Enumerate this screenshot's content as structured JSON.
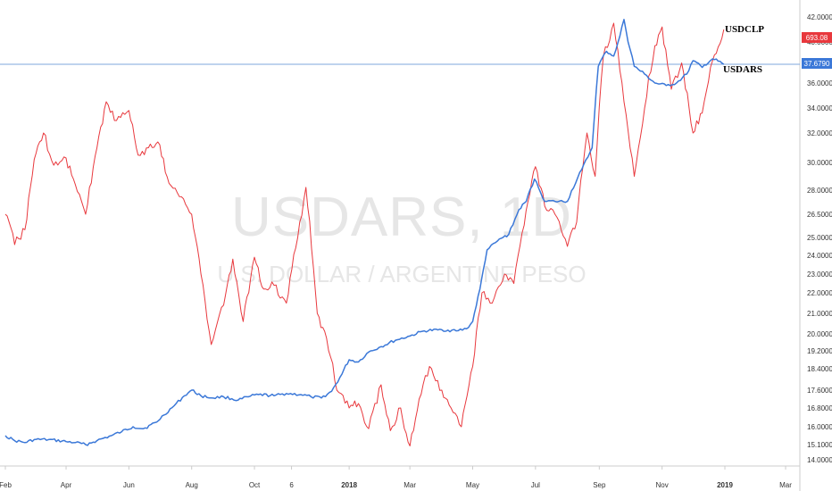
{
  "watermark": {
    "symbol": "USDARS, 1D",
    "description": "U.S. DOLLAR / ARGENTINE PESO"
  },
  "chart_data": {
    "type": "line",
    "y_axis_position": "right",
    "y_ticks": [
      "14.0000",
      "15.1000",
      "16.0000",
      "16.8000",
      "17.6000",
      "18.4000",
      "19.2000",
      "20.0000",
      "21.0000",
      "22.0000",
      "23.0000",
      "24.0000",
      "25.0000",
      "26.5000",
      "28.0000",
      "30.0000",
      "32.0000",
      "34.0000",
      "36.0000",
      "38.0000",
      "40.0000",
      "42.0000"
    ],
    "ylim": [
      14.0,
      42.0
    ],
    "x_ticks": [
      {
        "label": "Feb",
        "date": "2017-02-01",
        "bold": false
      },
      {
        "label": "Apr",
        "date": "2017-04-01",
        "bold": false
      },
      {
        "label": "Jun",
        "date": "2017-06-01",
        "bold": false
      },
      {
        "label": "Aug",
        "date": "2017-08-01",
        "bold": false
      },
      {
        "label": "Oct",
        "date": "2017-10-01",
        "bold": false
      },
      {
        "label": "6",
        "date": "2017-11-06",
        "bold": false
      },
      {
        "label": "2018",
        "date": "2018-01-01",
        "bold": true
      },
      {
        "label": "Mar",
        "date": "2018-03-01",
        "bold": false
      },
      {
        "label": "May",
        "date": "2018-05-01",
        "bold": false
      },
      {
        "label": "Jul",
        "date": "2018-07-01",
        "bold": false
      },
      {
        "label": "Sep",
        "date": "2018-09-01",
        "bold": false
      },
      {
        "label": "Nov",
        "date": "2018-11-01",
        "bold": false
      },
      {
        "label": "2019",
        "date": "2019-01-01",
        "bold": true
      },
      {
        "label": "Mar",
        "date": "2019-03-01",
        "bold": false
      }
    ],
    "series": [
      {
        "name": "USDARS",
        "color": "#3b78d8",
        "last_value": "37.6790",
        "points": [
          [
            "2017-02-01",
            15.55
          ],
          [
            "2017-02-10",
            15.3
          ],
          [
            "2017-02-20",
            15.2
          ],
          [
            "2017-03-01",
            15.35
          ],
          [
            "2017-03-15",
            15.35
          ],
          [
            "2017-04-01",
            15.25
          ],
          [
            "2017-04-10",
            15.2
          ],
          [
            "2017-04-20",
            15.1
          ],
          [
            "2017-05-01",
            15.3
          ],
          [
            "2017-05-15",
            15.55
          ],
          [
            "2017-05-25",
            15.75
          ],
          [
            "2017-06-05",
            16.0
          ],
          [
            "2017-06-15",
            15.9
          ],
          [
            "2017-06-28",
            16.2
          ],
          [
            "2017-07-05",
            16.5
          ],
          [
            "2017-07-15",
            16.9
          ],
          [
            "2017-07-25",
            17.35
          ],
          [
            "2017-08-01",
            17.6
          ],
          [
            "2017-08-10",
            17.35
          ],
          [
            "2017-08-20",
            17.25
          ],
          [
            "2017-09-01",
            17.3
          ],
          [
            "2017-09-15",
            17.15
          ],
          [
            "2017-09-25",
            17.3
          ],
          [
            "2017-10-05",
            17.4
          ],
          [
            "2017-10-20",
            17.35
          ],
          [
            "2017-11-01",
            17.45
          ],
          [
            "2017-11-15",
            17.4
          ],
          [
            "2017-11-25",
            17.3
          ],
          [
            "2017-12-05",
            17.25
          ],
          [
            "2017-12-15",
            17.55
          ],
          [
            "2017-12-25",
            18.2
          ],
          [
            "2018-01-01",
            18.8
          ],
          [
            "2018-01-10",
            18.7
          ],
          [
            "2018-01-20",
            19.15
          ],
          [
            "2018-02-01",
            19.4
          ],
          [
            "2018-02-15",
            19.7
          ],
          [
            "2018-03-01",
            19.9
          ],
          [
            "2018-03-15",
            20.15
          ],
          [
            "2018-04-01",
            20.2
          ],
          [
            "2018-04-15",
            20.15
          ],
          [
            "2018-04-25",
            20.25
          ],
          [
            "2018-05-01",
            20.6
          ],
          [
            "2018-05-08",
            22.2
          ],
          [
            "2018-05-15",
            24.3
          ],
          [
            "2018-05-25",
            24.8
          ],
          [
            "2018-06-05",
            25.2
          ],
          [
            "2018-06-15",
            26.8
          ],
          [
            "2018-06-22",
            27.3
          ],
          [
            "2018-06-30",
            28.8
          ],
          [
            "2018-07-10",
            27.3
          ],
          [
            "2018-07-20",
            27.3
          ],
          [
            "2018-08-01",
            27.3
          ],
          [
            "2018-08-15",
            29.5
          ],
          [
            "2018-08-25",
            31.0
          ],
          [
            "2018-08-31",
            37.5
          ],
          [
            "2018-09-08",
            39.0
          ],
          [
            "2018-09-15",
            38.5
          ],
          [
            "2018-09-25",
            41.8
          ],
          [
            "2018-10-05",
            37.5
          ],
          [
            "2018-10-15",
            36.8
          ],
          [
            "2018-10-25",
            36.0
          ],
          [
            "2018-11-05",
            35.8
          ],
          [
            "2018-11-15",
            36.0
          ],
          [
            "2018-11-25",
            36.8
          ],
          [
            "2018-12-01",
            38.0
          ],
          [
            "2018-12-10",
            37.4
          ],
          [
            "2018-12-20",
            38.2
          ],
          [
            "2018-12-31",
            37.68
          ]
        ]
      },
      {
        "name": "USDCLP",
        "color": "#e8383d",
        "last_value": "693.08",
        "points": [
          [
            "2017-02-01",
            26.5
          ],
          [
            "2017-02-10",
            24.6
          ],
          [
            "2017-02-20",
            25.5
          ],
          [
            "2017-03-01",
            30.2
          ],
          [
            "2017-03-10",
            32.0
          ],
          [
            "2017-03-20",
            29.8
          ],
          [
            "2017-04-01",
            30.3
          ],
          [
            "2017-04-10",
            28.4
          ],
          [
            "2017-04-20",
            26.5
          ],
          [
            "2017-05-01",
            31.0
          ],
          [
            "2017-05-10",
            34.5
          ],
          [
            "2017-05-20",
            33.0
          ],
          [
            "2017-06-01",
            33.8
          ],
          [
            "2017-06-10",
            30.5
          ],
          [
            "2017-06-20",
            31.0
          ],
          [
            "2017-07-01",
            31.2
          ],
          [
            "2017-07-10",
            28.5
          ],
          [
            "2017-07-20",
            27.6
          ],
          [
            "2017-08-01",
            26.5
          ],
          [
            "2017-08-10",
            23.0
          ],
          [
            "2017-08-20",
            19.5
          ],
          [
            "2017-09-01",
            21.4
          ],
          [
            "2017-09-10",
            23.8
          ],
          [
            "2017-09-20",
            20.6
          ],
          [
            "2017-10-01",
            23.9
          ],
          [
            "2017-10-10",
            22.2
          ],
          [
            "2017-10-20",
            22.4
          ],
          [
            "2017-11-01",
            21.5
          ],
          [
            "2017-11-10",
            24.4
          ],
          [
            "2017-11-20",
            28.2
          ],
          [
            "2017-12-01",
            21.0
          ],
          [
            "2017-12-10",
            19.8
          ],
          [
            "2017-12-20",
            17.6
          ],
          [
            "2018-01-01",
            16.8
          ],
          [
            "2018-01-10",
            17.0
          ],
          [
            "2018-01-20",
            15.9
          ],
          [
            "2018-02-01",
            17.8
          ],
          [
            "2018-02-10",
            15.8
          ],
          [
            "2018-02-20",
            16.8
          ],
          [
            "2018-03-01",
            15.0
          ],
          [
            "2018-03-10",
            17.2
          ],
          [
            "2018-03-20",
            18.5
          ],
          [
            "2018-04-01",
            17.6
          ],
          [
            "2018-04-10",
            16.8
          ],
          [
            "2018-04-20",
            16.0
          ],
          [
            "2018-05-01",
            18.5
          ],
          [
            "2018-05-10",
            22.0
          ],
          [
            "2018-05-20",
            21.5
          ],
          [
            "2018-06-01",
            23.0
          ],
          [
            "2018-06-10",
            22.5
          ],
          [
            "2018-06-20",
            25.8
          ],
          [
            "2018-07-01",
            29.7
          ],
          [
            "2018-07-10",
            27.0
          ],
          [
            "2018-07-20",
            26.5
          ],
          [
            "2018-08-01",
            24.5
          ],
          [
            "2018-08-10",
            26.0
          ],
          [
            "2018-08-20",
            32.0
          ],
          [
            "2018-08-28",
            29.0
          ],
          [
            "2018-09-05",
            38.5
          ],
          [
            "2018-09-15",
            41.5
          ],
          [
            "2018-09-25",
            34.5
          ],
          [
            "2018-10-05",
            29.0
          ],
          [
            "2018-10-15",
            34.0
          ],
          [
            "2018-10-25",
            39.6
          ],
          [
            "2018-11-01",
            41.2
          ],
          [
            "2018-11-10",
            35.5
          ],
          [
            "2018-11-20",
            37.8
          ],
          [
            "2018-12-01",
            32.0
          ],
          [
            "2018-12-10",
            33.6
          ],
          [
            "2018-12-20",
            38.0
          ],
          [
            "2018-12-31",
            41.0
          ]
        ]
      }
    ],
    "price_line": {
      "value": 37.679,
      "color": "#7fa7dd"
    }
  }
}
